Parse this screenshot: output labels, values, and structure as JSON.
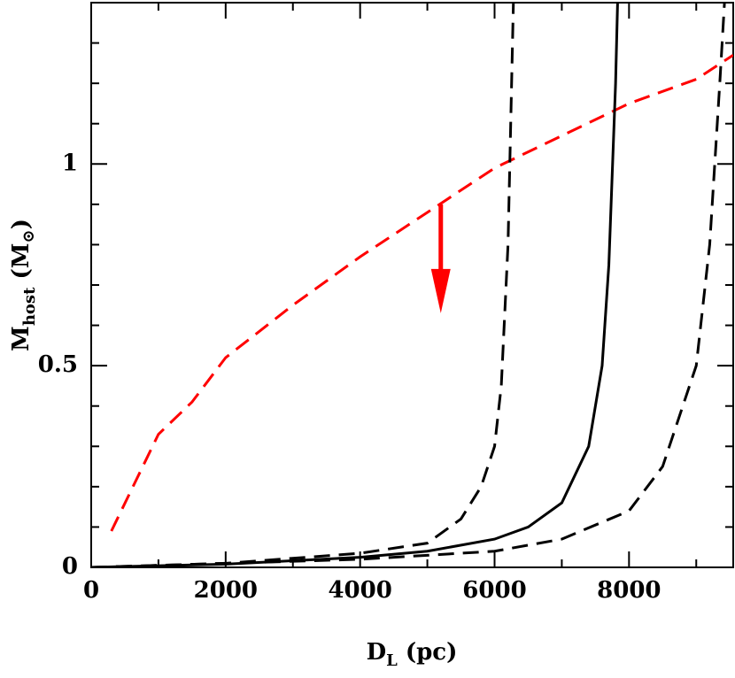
{
  "chart_data": {
    "type": "line",
    "x_label": {
      "main": "D",
      "sub": "L",
      "rest": " (pc)"
    },
    "y_label": {
      "main": "M",
      "sub": "host",
      "rest": " (M",
      "symbol": "⊙",
      "close": ")"
    },
    "xlim": [
      0,
      9550
    ],
    "ylim": [
      0,
      1.4
    ],
    "xticks": [
      0,
      2000,
      4000,
      6000,
      8000
    ],
    "yticks": [
      0,
      0.5,
      1
    ],
    "xminorticks": [
      1000,
      3000,
      5000,
      7000,
      9000
    ],
    "yminorticks": [
      0.1,
      0.2,
      0.3,
      0.4,
      0.6,
      0.7,
      0.8,
      0.9,
      1.1,
      1.2,
      1.3
    ],
    "series": [
      {
        "color": "#ff0000",
        "dash": true,
        "x": [
          300,
          1000,
          1500,
          2000,
          3000,
          4000,
          5000,
          6000,
          7000,
          8000,
          9000,
          9550
        ],
        "values": [
          0.09,
          0.33,
          0.41,
          0.52,
          0.65,
          0.77,
          0.88,
          0.99,
          1.07,
          1.15,
          1.21,
          1.27
        ]
      },
      {
        "color": "#000000",
        "dash": false,
        "x": [
          0,
          2000,
          4000,
          5000,
          6000,
          6500,
          7000,
          7400,
          7600,
          7700,
          7800,
          7830
        ],
        "values": [
          0,
          0.008,
          0.025,
          0.04,
          0.07,
          0.1,
          0.16,
          0.3,
          0.5,
          0.75,
          1.2,
          1.4
        ]
      },
      {
        "color": "#000000",
        "dash": true,
        "x": [
          0,
          2000,
          4000,
          5000,
          5500,
          5800,
          6000,
          6100,
          6200,
          6280
        ],
        "values": [
          0,
          0.01,
          0.035,
          0.06,
          0.12,
          0.2,
          0.3,
          0.45,
          0.8,
          1.4
        ]
      },
      {
        "color": "#000000",
        "dash": true,
        "x": [
          0,
          4000,
          6000,
          7000,
          8000,
          8500,
          9000,
          9200,
          9350,
          9420
        ],
        "values": [
          0,
          0.02,
          0.04,
          0.07,
          0.14,
          0.25,
          0.5,
          0.8,
          1.2,
          1.4
        ]
      }
    ],
    "arrow": {
      "x": 5200,
      "from": 0.9,
      "to": 0.63,
      "color": "#ff0000"
    }
  }
}
